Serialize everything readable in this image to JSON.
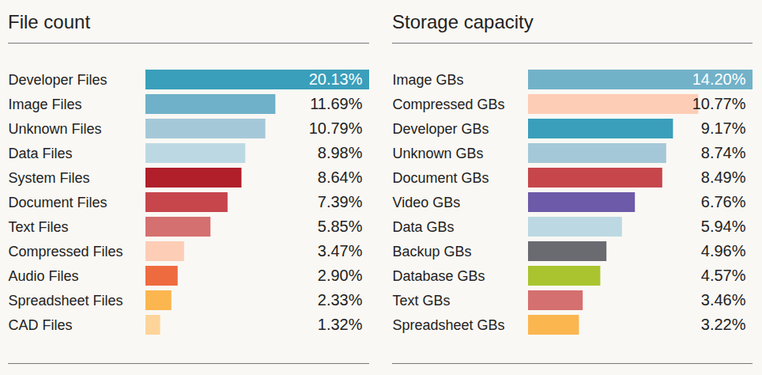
{
  "chart_data": [
    {
      "type": "bar",
      "title": "File count",
      "orientation": "horizontal",
      "data_labels": true,
      "tick_labels": "y",
      "categories": [
        "Developer Files",
        "Image Files",
        "Unknown Files",
        "Data Files",
        "System Files",
        "Document Files",
        "Text Files",
        "Compressed Files",
        "Audio Files",
        "Spreadsheet Files",
        "CAD Files"
      ],
      "values": [
        20.13,
        11.69,
        10.79,
        8.98,
        8.64,
        7.39,
        5.85,
        3.47,
        2.9,
        2.33,
        1.32
      ],
      "value_labels": [
        "20.13%",
        "11.69%",
        "10.79%",
        "8.98%",
        "8.64%",
        "7.39%",
        "5.85%",
        "3.47%",
        "2.90%",
        "2.33%",
        "1.32%"
      ],
      "colors": [
        "#3a9fbb",
        "#6fb1c8",
        "#a5c8d8",
        "#bcd9e3",
        "#b01f2a",
        "#c6464c",
        "#d4706f",
        "#fdcdb6",
        "#ee6b3f",
        "#fbb64f",
        "#fdd49a"
      ],
      "xlim": [
        0,
        20.13
      ]
    },
    {
      "type": "bar",
      "title": "Storage capacity",
      "orientation": "horizontal",
      "data_labels": true,
      "tick_labels": "y",
      "categories": [
        "Image GBs",
        "Compressed GBs",
        "Developer GBs",
        "Unknown GBs",
        "Document GBs",
        "Video GBs",
        "Data GBs",
        "Backup GBs",
        "Database GBs",
        "Text GBs",
        "Spreadsheet GBs"
      ],
      "values": [
        14.2,
        10.77,
        9.17,
        8.74,
        8.49,
        6.76,
        5.94,
        4.96,
        4.57,
        3.46,
        3.22
      ],
      "value_labels": [
        "14.20%",
        "10.77%",
        "9.17%",
        "8.74%",
        "8.49%",
        "6.76%",
        "5.94%",
        "4.96%",
        "4.57%",
        "3.46%",
        "3.22%"
      ],
      "colors": [
        "#72b2c9",
        "#fdcdb6",
        "#3a9fbb",
        "#a5c8d8",
        "#c6464c",
        "#6d5aa9",
        "#bcd9e3",
        "#696b71",
        "#a9c42f",
        "#d4706f",
        "#fbb64f"
      ],
      "xlim": [
        0,
        14.2
      ]
    }
  ]
}
